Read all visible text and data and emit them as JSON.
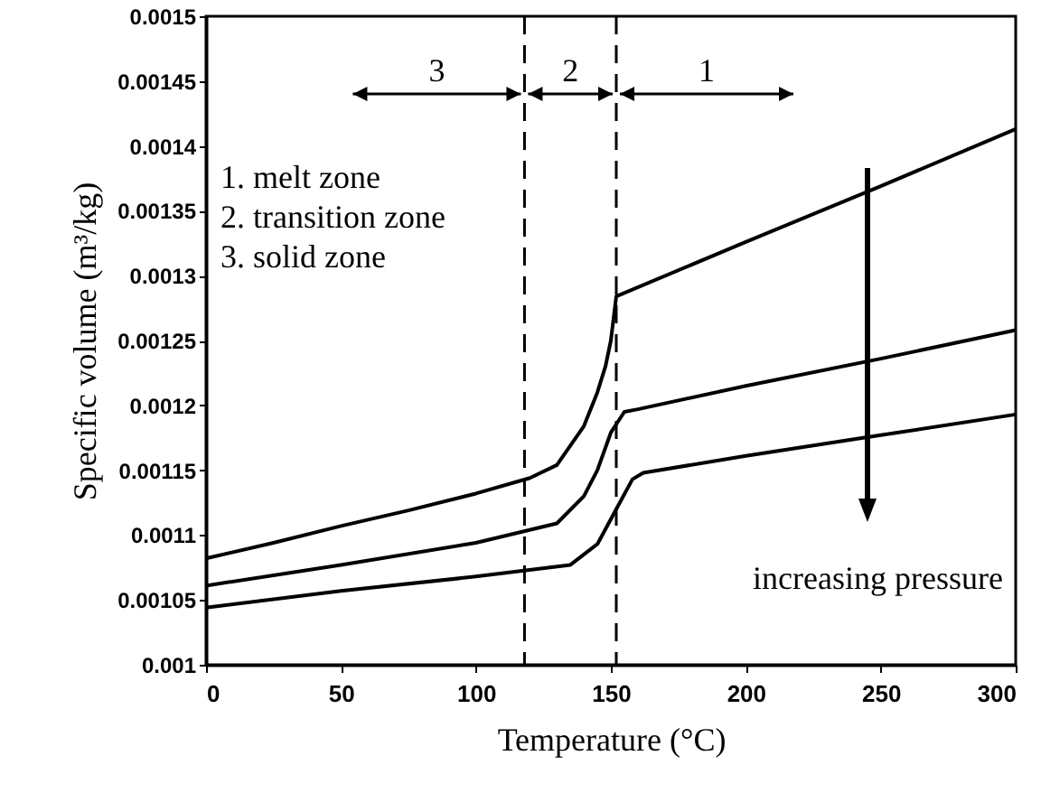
{
  "chart_data": {
    "type": "line",
    "xlabel": "Temperature (°C)",
    "ylabel": "Specific volume (m³/kg)",
    "xlim": [
      0,
      300
    ],
    "xticks": [
      0,
      50,
      100,
      150,
      200,
      250,
      300
    ],
    "ylim": [
      0.001,
      0.0015
    ],
    "yticks": [
      0.001,
      0.00105,
      0.0011,
      0.00115,
      0.0012,
      0.00125,
      0.0013,
      0.00135,
      0.0014,
      0.00145,
      0.0015
    ],
    "grid": false,
    "marker": "none",
    "line_style": "solid",
    "series": [
      {
        "color": "#000000",
        "x": [
          0,
          25,
          50,
          75,
          100,
          120,
          130,
          140,
          145,
          148,
          150,
          152,
          200,
          250,
          300
        ],
        "values": [
          0.001082,
          0.001094,
          0.001107,
          0.001119,
          0.001132,
          0.001144,
          0.001154,
          0.001184,
          0.00121,
          0.00123,
          0.00125,
          0.001284,
          0.001326,
          0.001369,
          0.001413
        ]
      },
      {
        "color": "#000000",
        "x": [
          0,
          50,
          100,
          130,
          140,
          145,
          150,
          155,
          160,
          200,
          250,
          300
        ],
        "values": [
          0.001061,
          0.001077,
          0.001094,
          0.001109,
          0.00113,
          0.00115,
          0.001179,
          0.001195,
          0.001197,
          0.001215,
          0.001236,
          0.001258
        ]
      },
      {
        "color": "#000000",
        "x": [
          0,
          50,
          100,
          135,
          145,
          152,
          158,
          162,
          200,
          250,
          300
        ],
        "values": [
          0.001044,
          0.001057,
          0.001068,
          0.001077,
          0.001093,
          0.00112,
          0.001143,
          0.001148,
          0.001161,
          0.001177,
          0.001193
        ]
      }
    ],
    "ref_lines": [
      {
        "axis": "x",
        "value": 118,
        "color": "#000000",
        "line_style": "dashed"
      },
      {
        "axis": "x",
        "value": 152,
        "color": "#000000",
        "line_style": "dashed"
      }
    ],
    "annotations": [
      "3",
      "2",
      "1",
      "1. melt zone",
      "2. transition zone",
      "3. solid zone",
      "increasing pressure"
    ]
  }
}
